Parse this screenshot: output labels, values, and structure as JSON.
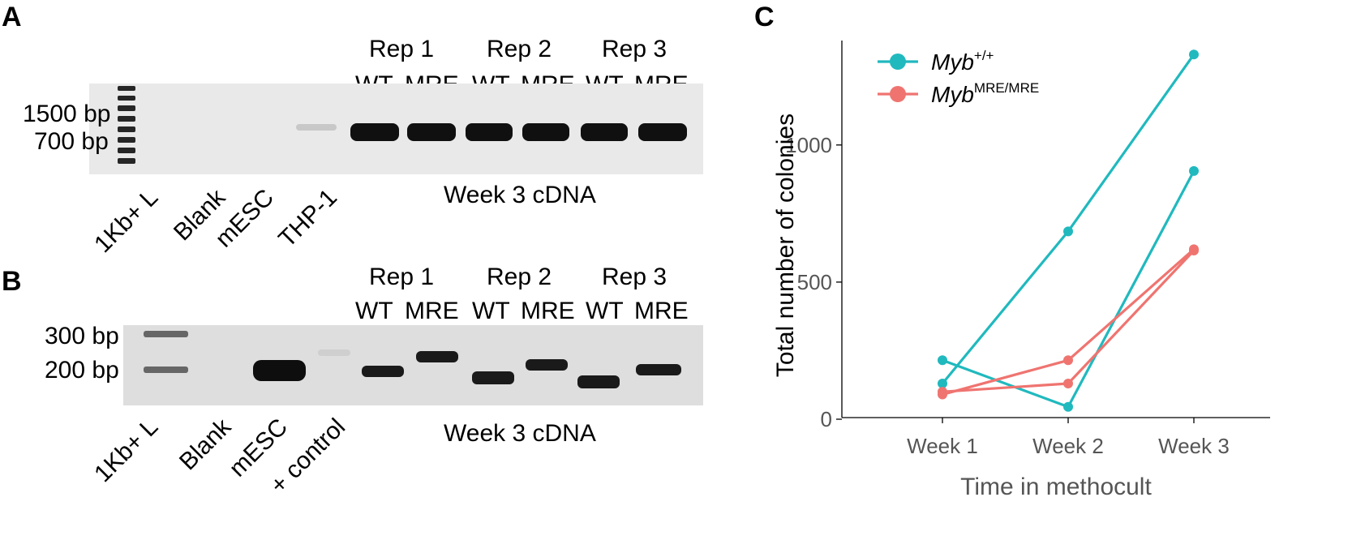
{
  "panels": {
    "a": "A",
    "b": "B",
    "c": "C"
  },
  "gel_a": {
    "reps": [
      "Rep 1",
      "Rep 2",
      "Rep 3"
    ],
    "cond": [
      "WT",
      "MRE",
      "WT",
      "MRE",
      "WT",
      "MRE"
    ],
    "sizes": [
      "1500 bp",
      "700 bp"
    ],
    "lanes": [
      "1Kb+ L",
      "Blank",
      "mESC",
      "THP-1"
    ],
    "group_label": "Week 3 cDNA"
  },
  "gel_b": {
    "reps": [
      "Rep 1",
      "Rep 2",
      "Rep 3"
    ],
    "cond": [
      "WT",
      "MRE",
      "WT",
      "MRE",
      "WT",
      "MRE"
    ],
    "sizes": [
      "300 bp",
      "200 bp"
    ],
    "lanes": [
      "1Kb+ L",
      "Blank",
      "mESC",
      "+ control"
    ],
    "group_label": "Week 3 cDNA"
  },
  "chart_data": {
    "type": "line",
    "categories": [
      "Week 1",
      "Week 2",
      "Week 3"
    ],
    "xlabel": "Time in methocult",
    "ylabel": "Total number of colonies",
    "ylim": [
      0,
      1400
    ],
    "yticks": [
      0,
      500,
      1000
    ],
    "legend_position": "top-left",
    "colors": {
      "wt": "#20B9BE",
      "mre": "#EF7470"
    },
    "legend": [
      {
        "key": "wt",
        "base": "Myb",
        "sup": "+/+"
      },
      {
        "key": "mre",
        "base": "Myb",
        "sup": "MRE/MRE"
      }
    ],
    "series": [
      {
        "group": "wt",
        "values": [
          130,
          685,
          1330
        ]
      },
      {
        "group": "wt",
        "values": [
          215,
          45,
          905
        ]
      },
      {
        "group": "mre",
        "values": [
          90,
          215,
          620
        ]
      },
      {
        "group": "mre",
        "values": [
          100,
          130,
          615
        ]
      }
    ]
  }
}
